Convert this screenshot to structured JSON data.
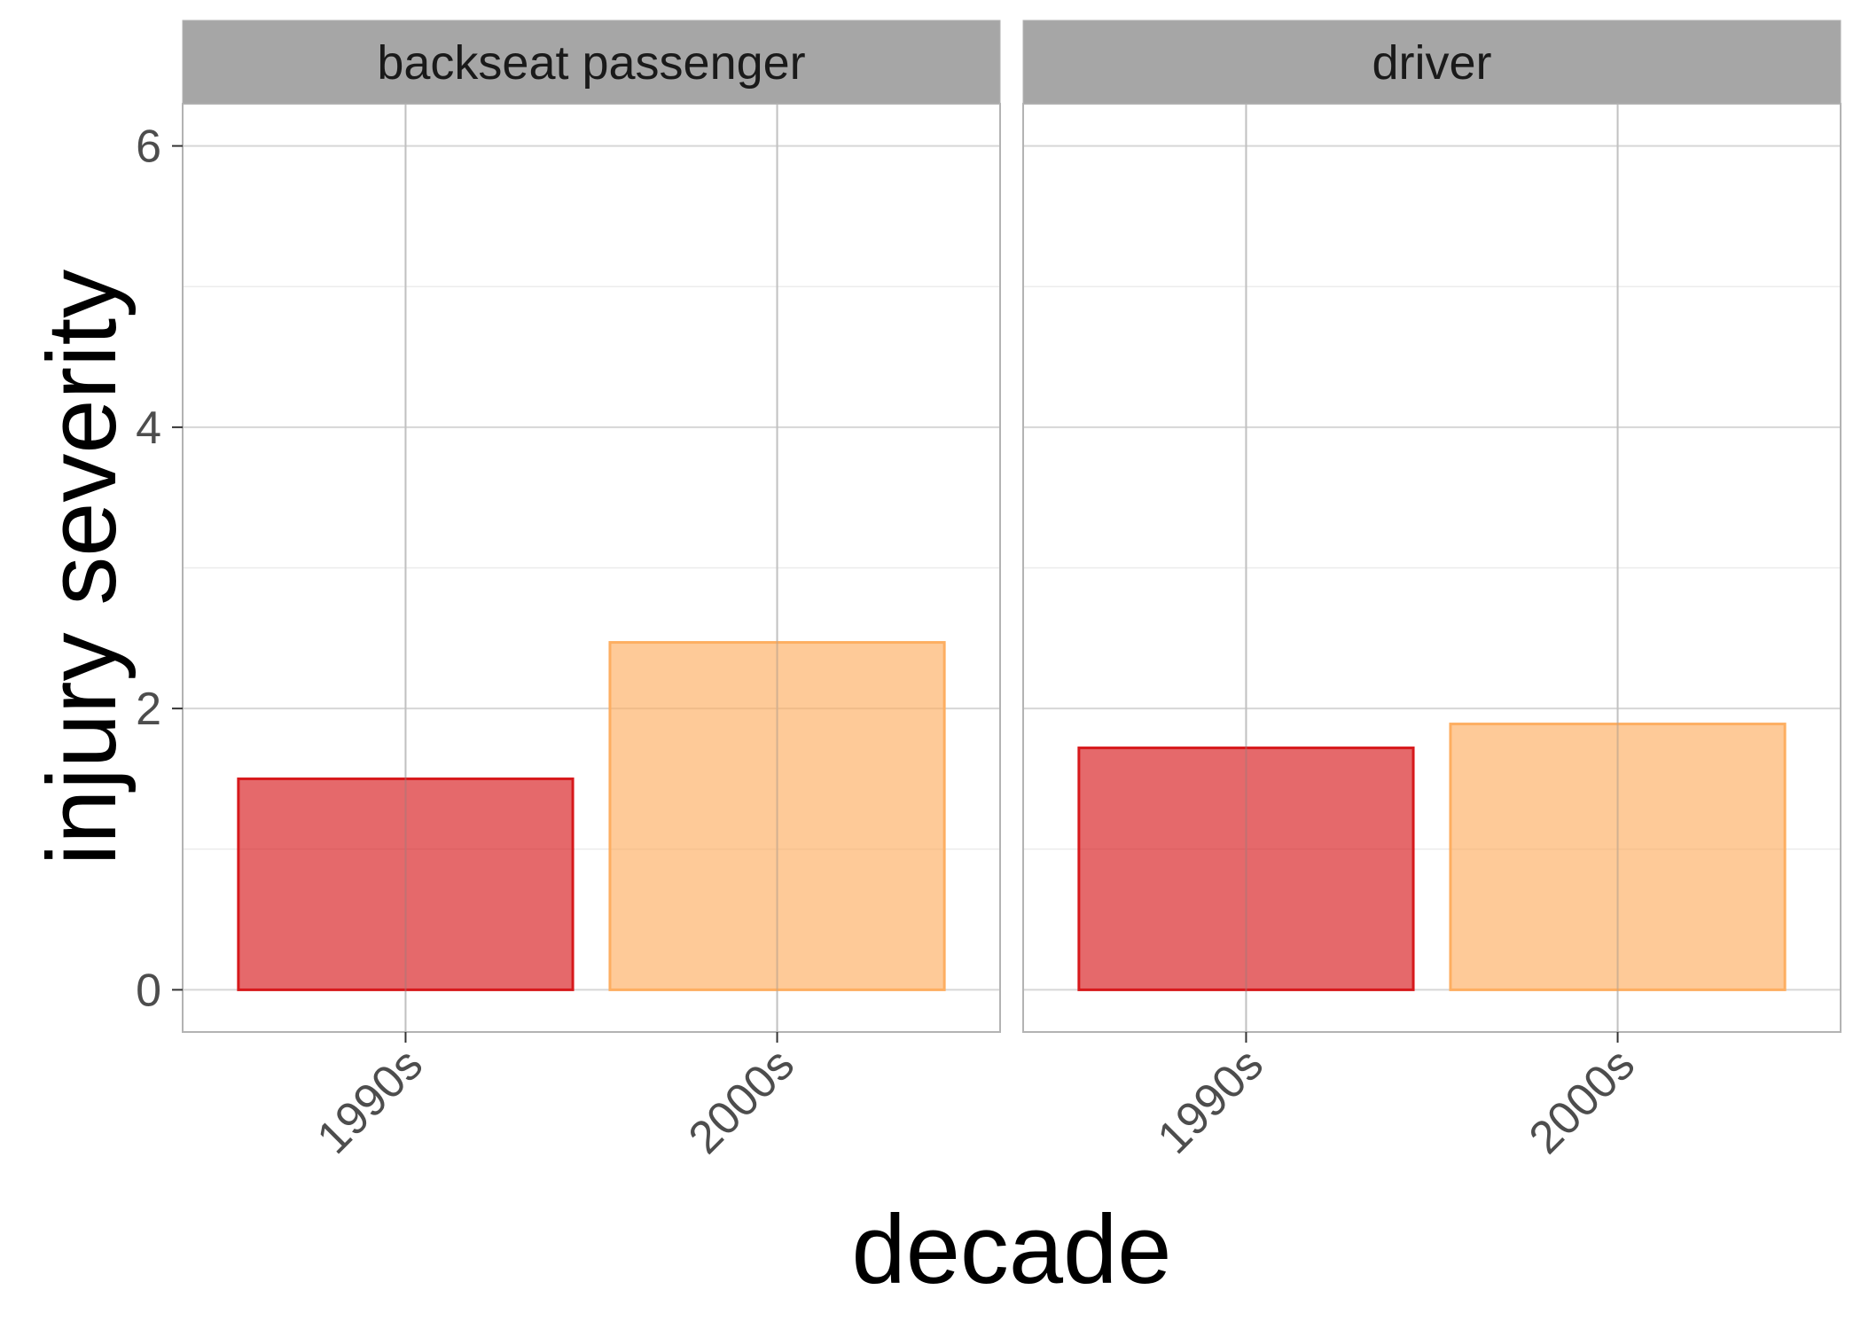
{
  "chart_data": {
    "type": "bar",
    "facet_by": "role",
    "xlabel": "decade",
    "ylabel": "injury severity",
    "ylim": [
      -0.3,
      6.3
    ],
    "y_ticks": [
      0,
      2,
      4,
      6
    ],
    "y_tick_labels": [
      "0",
      "2",
      "4",
      "6"
    ],
    "grid": true,
    "legend": "none",
    "categories": [
      "1990s",
      "2000s"
    ],
    "colors": {
      "1990s": "#d7191c",
      "2000s": "#fdae61"
    },
    "panels": [
      {
        "title": "backseat passenger",
        "values": [
          1.5,
          2.47
        ]
      },
      {
        "title": "driver",
        "values": [
          1.72,
          1.89
        ]
      }
    ]
  }
}
